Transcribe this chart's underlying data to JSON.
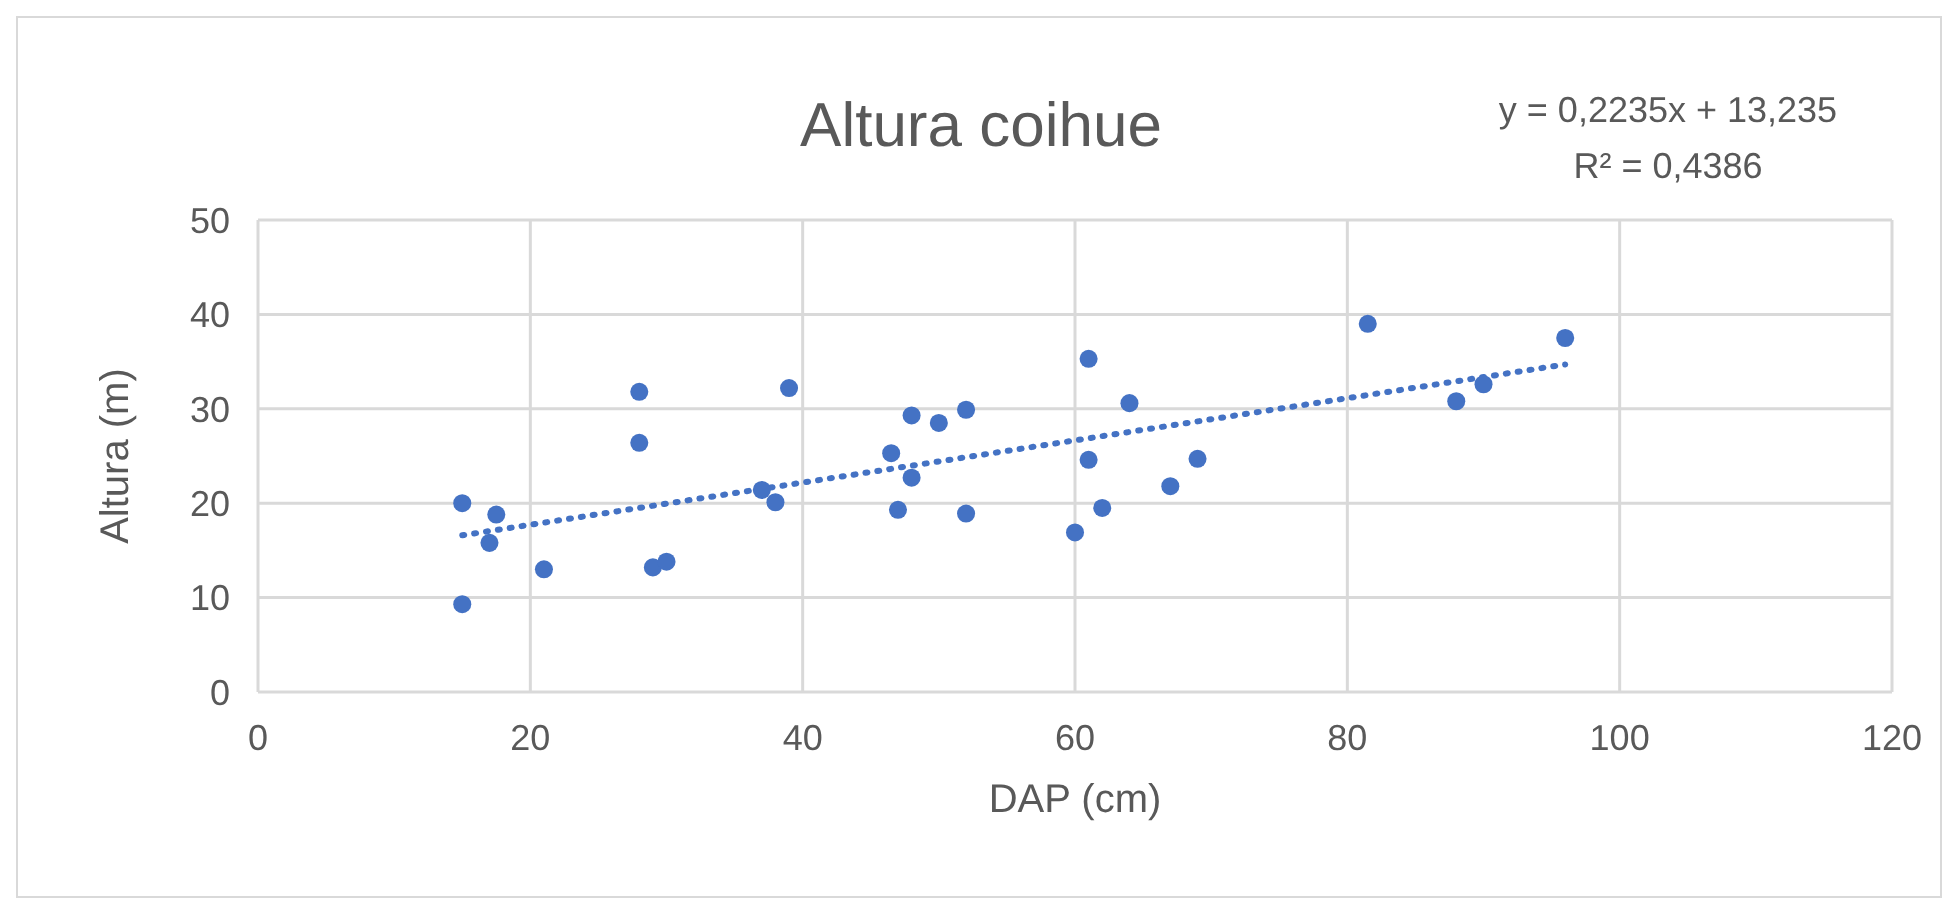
{
  "chart_data": {
    "type": "scatter",
    "title": "Altura coihue",
    "xlabel": "DAP (cm)",
    "ylabel": "Altura (m)",
    "annotations": [
      "y = 0,2235x + 13,235",
      "R² = 0,4386"
    ],
    "xlim": [
      0,
      120
    ],
    "xticks": [
      0,
      20,
      40,
      60,
      80,
      100,
      120
    ],
    "ylim": [
      0,
      50
    ],
    "yticks": [
      0,
      10,
      20,
      30,
      40,
      50
    ],
    "grid": true,
    "series": [
      {
        "color": "#4472c4",
        "marker": "circle",
        "x": [
          15,
          15,
          17,
          17.5,
          21,
          28,
          28,
          29,
          30,
          37,
          38,
          39,
          46.5,
          47,
          48,
          48,
          50,
          52,
          52,
          60,
          61,
          61,
          62,
          64,
          67,
          69,
          81.5,
          88,
          90,
          96
        ],
        "values": [
          20,
          9.3,
          15.8,
          18.8,
          13,
          31.8,
          26.4,
          13.2,
          13.8,
          21.4,
          20.1,
          32.2,
          25.3,
          19.3,
          29.3,
          22.7,
          28.5,
          29.9,
          18.9,
          16.9,
          35.3,
          24.6,
          19.5,
          30.6,
          21.8,
          24.7,
          39,
          30.8,
          32.6,
          37.5
        ]
      },
      {
        "type": "line",
        "color": "#4472c4",
        "line_style": "dotted",
        "marker": "none",
        "x": [
          15,
          96
        ],
        "values": [
          16.6,
          34.7
        ]
      }
    ]
  }
}
